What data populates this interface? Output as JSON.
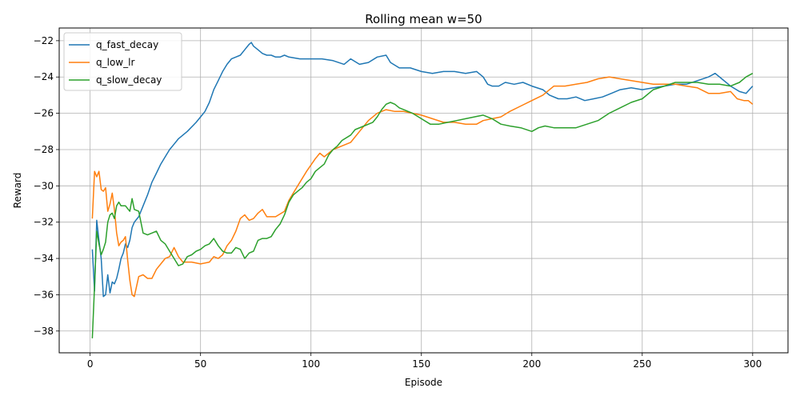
{
  "chart_data": {
    "type": "line",
    "title": "Rolling mean w=50",
    "xlabel": "Episode",
    "ylabel": "Reward",
    "xlim": [
      -14,
      316
    ],
    "ylim": [
      -39.2,
      -21.3
    ],
    "xticks": [
      0,
      50,
      100,
      150,
      200,
      250,
      300
    ],
    "yticks": [
      -38,
      -36,
      -34,
      -32,
      -30,
      -28,
      -26,
      -24,
      -22
    ],
    "grid": true,
    "legend_position": "top-left",
    "series": [
      {
        "name": "q_fast_decay",
        "color": "#1f77b4",
        "points": [
          [
            1,
            -33.5
          ],
          [
            2,
            -35.8
          ],
          [
            3,
            -31.9
          ],
          [
            4,
            -33.0
          ],
          [
            5,
            -34.0
          ],
          [
            6,
            -36.1
          ],
          [
            7,
            -36.0
          ],
          [
            8,
            -34.9
          ],
          [
            9,
            -35.9
          ],
          [
            10,
            -35.3
          ],
          [
            11,
            -35.4
          ],
          [
            12,
            -35.1
          ],
          [
            13,
            -34.6
          ],
          [
            14,
            -34.0
          ],
          [
            15,
            -33.7
          ],
          [
            16,
            -33.2
          ],
          [
            17,
            -33.4
          ],
          [
            18,
            -33.0
          ],
          [
            19,
            -32.3
          ],
          [
            20,
            -32.0
          ],
          [
            22,
            -31.7
          ],
          [
            24,
            -31.1
          ],
          [
            26,
            -30.5
          ],
          [
            28,
            -29.8
          ],
          [
            30,
            -29.3
          ],
          [
            32,
            -28.8
          ],
          [
            34,
            -28.4
          ],
          [
            36,
            -28.0
          ],
          [
            38,
            -27.7
          ],
          [
            40,
            -27.4
          ],
          [
            44,
            -27.0
          ],
          [
            48,
            -26.5
          ],
          [
            50,
            -26.2
          ],
          [
            52,
            -25.9
          ],
          [
            54,
            -25.4
          ],
          [
            56,
            -24.7
          ],
          [
            58,
            -24.2
          ],
          [
            60,
            -23.7
          ],
          [
            62,
            -23.3
          ],
          [
            64,
            -23.0
          ],
          [
            66,
            -22.9
          ],
          [
            68,
            -22.8
          ],
          [
            70,
            -22.5
          ],
          [
            72,
            -22.2
          ],
          [
            73,
            -22.1
          ],
          [
            74,
            -22.3
          ],
          [
            76,
            -22.5
          ],
          [
            78,
            -22.7
          ],
          [
            80,
            -22.8
          ],
          [
            82,
            -22.8
          ],
          [
            84,
            -22.9
          ],
          [
            86,
            -22.9
          ],
          [
            88,
            -22.8
          ],
          [
            90,
            -22.9
          ],
          [
            95,
            -23.0
          ],
          [
            100,
            -23.0
          ],
          [
            105,
            -23.0
          ],
          [
            110,
            -23.1
          ],
          [
            115,
            -23.3
          ],
          [
            118,
            -23.0
          ],
          [
            122,
            -23.3
          ],
          [
            126,
            -23.2
          ],
          [
            130,
            -22.9
          ],
          [
            134,
            -22.8
          ],
          [
            136,
            -23.2
          ],
          [
            140,
            -23.5
          ],
          [
            145,
            -23.5
          ],
          [
            150,
            -23.7
          ],
          [
            155,
            -23.8
          ],
          [
            160,
            -23.7
          ],
          [
            165,
            -23.7
          ],
          [
            170,
            -23.8
          ],
          [
            175,
            -23.7
          ],
          [
            178,
            -24.0
          ],
          [
            180,
            -24.4
          ],
          [
            182,
            -24.5
          ],
          [
            185,
            -24.5
          ],
          [
            188,
            -24.3
          ],
          [
            192,
            -24.4
          ],
          [
            196,
            -24.3
          ],
          [
            200,
            -24.5
          ],
          [
            205,
            -24.7
          ],
          [
            208,
            -25.0
          ],
          [
            212,
            -25.2
          ],
          [
            216,
            -25.2
          ],
          [
            220,
            -25.1
          ],
          [
            224,
            -25.3
          ],
          [
            228,
            -25.2
          ],
          [
            232,
            -25.1
          ],
          [
            236,
            -24.9
          ],
          [
            240,
            -24.7
          ],
          [
            245,
            -24.6
          ],
          [
            250,
            -24.7
          ],
          [
            255,
            -24.6
          ],
          [
            260,
            -24.5
          ],
          [
            265,
            -24.4
          ],
          [
            270,
            -24.4
          ],
          [
            275,
            -24.2
          ],
          [
            280,
            -24.0
          ],
          [
            283,
            -23.8
          ],
          [
            286,
            -24.1
          ],
          [
            290,
            -24.5
          ],
          [
            294,
            -24.8
          ],
          [
            297,
            -24.9
          ],
          [
            300,
            -24.5
          ]
        ]
      },
      {
        "name": "q_low_lr",
        "color": "#ff7f0e",
        "points": [
          [
            1,
            -31.8
          ],
          [
            2,
            -29.2
          ],
          [
            3,
            -29.5
          ],
          [
            4,
            -29.2
          ],
          [
            5,
            -30.2
          ],
          [
            6,
            -30.3
          ],
          [
            7,
            -30.1
          ],
          [
            8,
            -31.4
          ],
          [
            9,
            -31.0
          ],
          [
            10,
            -30.4
          ],
          [
            11,
            -31.3
          ],
          [
            12,
            -32.6
          ],
          [
            13,
            -33.3
          ],
          [
            14,
            -33.1
          ],
          [
            15,
            -33.0
          ],
          [
            16,
            -32.8
          ],
          [
            17,
            -34.1
          ],
          [
            18,
            -35.2
          ],
          [
            19,
            -36.0
          ],
          [
            20,
            -36.1
          ],
          [
            22,
            -35.0
          ],
          [
            24,
            -34.9
          ],
          [
            26,
            -35.1
          ],
          [
            28,
            -35.1
          ],
          [
            30,
            -34.6
          ],
          [
            32,
            -34.3
          ],
          [
            34,
            -34.0
          ],
          [
            36,
            -33.9
          ],
          [
            38,
            -33.4
          ],
          [
            40,
            -33.9
          ],
          [
            42,
            -34.2
          ],
          [
            46,
            -34.2
          ],
          [
            50,
            -34.3
          ],
          [
            54,
            -34.2
          ],
          [
            56,
            -33.9
          ],
          [
            58,
            -34.0
          ],
          [
            60,
            -33.8
          ],
          [
            62,
            -33.3
          ],
          [
            64,
            -33.0
          ],
          [
            66,
            -32.5
          ],
          [
            68,
            -31.8
          ],
          [
            70,
            -31.6
          ],
          [
            72,
            -31.9
          ],
          [
            74,
            -31.8
          ],
          [
            76,
            -31.5
          ],
          [
            78,
            -31.3
          ],
          [
            80,
            -31.7
          ],
          [
            84,
            -31.7
          ],
          [
            88,
            -31.4
          ],
          [
            90,
            -30.8
          ],
          [
            94,
            -30.0
          ],
          [
            98,
            -29.2
          ],
          [
            102,
            -28.5
          ],
          [
            104,
            -28.2
          ],
          [
            106,
            -28.4
          ],
          [
            110,
            -28.0
          ],
          [
            114,
            -27.8
          ],
          [
            118,
            -27.6
          ],
          [
            122,
            -27.0
          ],
          [
            126,
            -26.4
          ],
          [
            130,
            -26.0
          ],
          [
            134,
            -25.8
          ],
          [
            138,
            -25.9
          ],
          [
            142,
            -25.9
          ],
          [
            146,
            -26.0
          ],
          [
            150,
            -26.1
          ],
          [
            155,
            -26.3
          ],
          [
            160,
            -26.5
          ],
          [
            165,
            -26.5
          ],
          [
            170,
            -26.6
          ],
          [
            175,
            -26.6
          ],
          [
            178,
            -26.4
          ],
          [
            182,
            -26.3
          ],
          [
            186,
            -26.2
          ],
          [
            190,
            -25.9
          ],
          [
            195,
            -25.6
          ],
          [
            200,
            -25.3
          ],
          [
            205,
            -25.0
          ],
          [
            210,
            -24.5
          ],
          [
            215,
            -24.5
          ],
          [
            220,
            -24.4
          ],
          [
            225,
            -24.3
          ],
          [
            230,
            -24.1
          ],
          [
            235,
            -24.0
          ],
          [
            240,
            -24.1
          ],
          [
            245,
            -24.2
          ],
          [
            250,
            -24.3
          ],
          [
            255,
            -24.4
          ],
          [
            260,
            -24.4
          ],
          [
            265,
            -24.4
          ],
          [
            270,
            -24.5
          ],
          [
            275,
            -24.6
          ],
          [
            280,
            -24.9
          ],
          [
            285,
            -24.9
          ],
          [
            290,
            -24.8
          ],
          [
            293,
            -25.2
          ],
          [
            296,
            -25.3
          ],
          [
            298,
            -25.3
          ],
          [
            300,
            -25.5
          ]
        ]
      },
      {
        "name": "q_slow_decay",
        "color": "#2ca02c",
        "points": [
          [
            1,
            -38.4
          ],
          [
            2,
            -35.5
          ],
          [
            3,
            -32.5
          ],
          [
            4,
            -33.2
          ],
          [
            5,
            -33.8
          ],
          [
            6,
            -33.5
          ],
          [
            7,
            -33.1
          ],
          [
            8,
            -32.0
          ],
          [
            9,
            -31.6
          ],
          [
            10,
            -31.5
          ],
          [
            11,
            -31.8
          ],
          [
            12,
            -31.1
          ],
          [
            13,
            -30.9
          ],
          [
            14,
            -31.1
          ],
          [
            16,
            -31.1
          ],
          [
            18,
            -31.4
          ],
          [
            19,
            -30.7
          ],
          [
            20,
            -31.3
          ],
          [
            22,
            -31.4
          ],
          [
            24,
            -32.6
          ],
          [
            26,
            -32.7
          ],
          [
            28,
            -32.6
          ],
          [
            30,
            -32.5
          ],
          [
            32,
            -33.0
          ],
          [
            34,
            -33.2
          ],
          [
            36,
            -33.6
          ],
          [
            38,
            -34.0
          ],
          [
            40,
            -34.4
          ],
          [
            42,
            -34.3
          ],
          [
            44,
            -33.9
          ],
          [
            46,
            -33.8
          ],
          [
            48,
            -33.6
          ],
          [
            50,
            -33.5
          ],
          [
            52,
            -33.3
          ],
          [
            54,
            -33.2
          ],
          [
            56,
            -32.9
          ],
          [
            58,
            -33.3
          ],
          [
            60,
            -33.6
          ],
          [
            62,
            -33.7
          ],
          [
            64,
            -33.7
          ],
          [
            66,
            -33.4
          ],
          [
            68,
            -33.5
          ],
          [
            70,
            -34.0
          ],
          [
            72,
            -33.7
          ],
          [
            74,
            -33.6
          ],
          [
            76,
            -33.0
          ],
          [
            78,
            -32.9
          ],
          [
            80,
            -32.9
          ],
          [
            82,
            -32.8
          ],
          [
            84,
            -32.4
          ],
          [
            86,
            -32.1
          ],
          [
            88,
            -31.6
          ],
          [
            90,
            -30.9
          ],
          [
            92,
            -30.5
          ],
          [
            94,
            -30.3
          ],
          [
            96,
            -30.1
          ],
          [
            98,
            -29.8
          ],
          [
            100,
            -29.6
          ],
          [
            102,
            -29.2
          ],
          [
            104,
            -29.0
          ],
          [
            106,
            -28.8
          ],
          [
            108,
            -28.3
          ],
          [
            110,
            -28.0
          ],
          [
            112,
            -27.8
          ],
          [
            114,
            -27.5
          ],
          [
            118,
            -27.2
          ],
          [
            120,
            -26.9
          ],
          [
            124,
            -26.7
          ],
          [
            128,
            -26.5
          ],
          [
            130,
            -26.2
          ],
          [
            132,
            -25.8
          ],
          [
            134,
            -25.5
          ],
          [
            136,
            -25.4
          ],
          [
            138,
            -25.5
          ],
          [
            140,
            -25.7
          ],
          [
            142,
            -25.8
          ],
          [
            146,
            -26.0
          ],
          [
            150,
            -26.3
          ],
          [
            154,
            -26.6
          ],
          [
            158,
            -26.6
          ],
          [
            162,
            -26.5
          ],
          [
            166,
            -26.4
          ],
          [
            170,
            -26.3
          ],
          [
            174,
            -26.2
          ],
          [
            178,
            -26.1
          ],
          [
            182,
            -26.3
          ],
          [
            186,
            -26.6
          ],
          [
            190,
            -26.7
          ],
          [
            195,
            -26.8
          ],
          [
            200,
            -27.0
          ],
          [
            203,
            -26.8
          ],
          [
            206,
            -26.7
          ],
          [
            210,
            -26.8
          ],
          [
            215,
            -26.8
          ],
          [
            220,
            -26.8
          ],
          [
            225,
            -26.6
          ],
          [
            230,
            -26.4
          ],
          [
            235,
            -26.0
          ],
          [
            240,
            -25.7
          ],
          [
            245,
            -25.4
          ],
          [
            250,
            -25.2
          ],
          [
            255,
            -24.7
          ],
          [
            260,
            -24.5
          ],
          [
            265,
            -24.3
          ],
          [
            270,
            -24.3
          ],
          [
            275,
            -24.3
          ],
          [
            280,
            -24.4
          ],
          [
            285,
            -24.4
          ],
          [
            290,
            -24.5
          ],
          [
            294,
            -24.3
          ],
          [
            297,
            -24.0
          ],
          [
            300,
            -23.8
          ]
        ]
      }
    ]
  }
}
